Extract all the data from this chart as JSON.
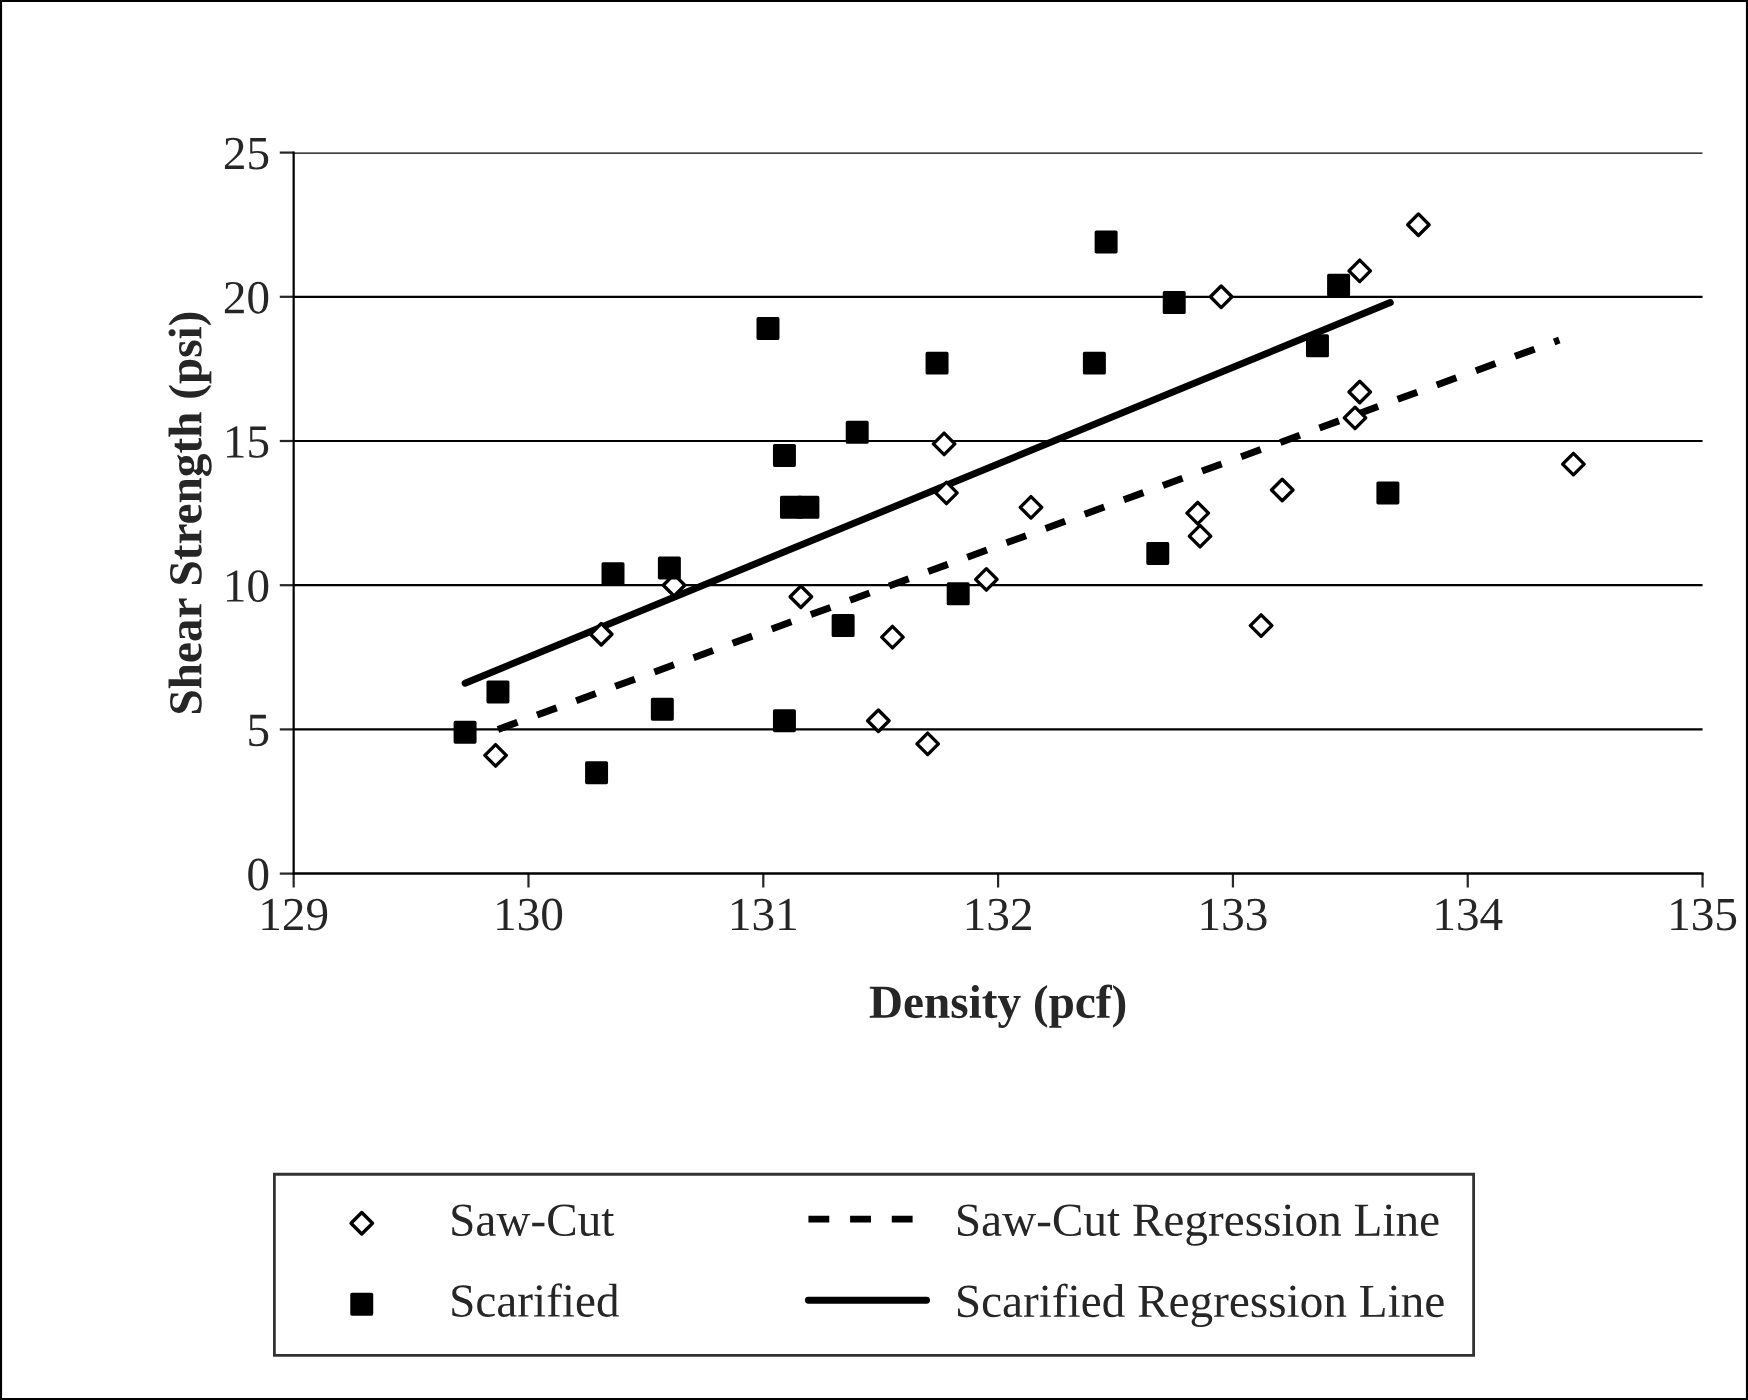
{
  "chart_data": {
    "type": "scatter",
    "xlabel": "Density (pcf)",
    "ylabel": "Shear Strength (psi)",
    "xlim": [
      129,
      135
    ],
    "xticks": [
      129,
      130,
      131,
      132,
      133,
      134,
      135
    ],
    "ylim": [
      0,
      25
    ],
    "yticks": [
      0,
      5,
      10,
      15,
      20,
      25
    ],
    "grid": "y",
    "legend": "bottom",
    "series": [
      {
        "name": "Saw-Cut",
        "marker": "diamond",
        "color": "#000000",
        "x": [
          129.86,
          130.31,
          130.62,
          131.16,
          131.55,
          131.49,
          131.7,
          131.77,
          131.78,
          131.95,
          132.14,
          132.85,
          132.86,
          133.21,
          133.12,
          132.95,
          133.54,
          133.79,
          133.54,
          133.52,
          134.45
        ],
        "values": [
          4.1,
          8.3,
          10.0,
          9.6,
          8.2,
          5.3,
          4.5,
          14.9,
          13.2,
          10.2,
          12.7,
          12.5,
          11.7,
          13.3,
          8.6,
          20.0,
          20.9,
          22.5,
          16.7,
          15.8,
          14.2
        ]
      },
      {
        "name": "Scarified",
        "marker": "square",
        "color": "#000000",
        "x": [
          129.73,
          129.87,
          130.29,
          130.36,
          130.6,
          130.57,
          131.02,
          131.09,
          131.12,
          131.19,
          131.09,
          131.4,
          131.34,
          131.74,
          131.83,
          132.46,
          132.75,
          132.41,
          132.68,
          133.45,
          133.36,
          133.66
        ],
        "values": [
          4.9,
          6.3,
          3.5,
          10.4,
          10.6,
          5.7,
          18.9,
          14.5,
          12.7,
          12.7,
          5.3,
          15.3,
          8.6,
          17.7,
          9.7,
          21.9,
          19.8,
          17.7,
          11.1,
          20.4,
          18.3,
          13.2
        ]
      },
      {
        "name": "Saw-Cut Regression Line",
        "type": "line",
        "line_style": "dashed",
        "color": "#000000",
        "x": [
          129.87,
          134.39
        ],
        "values": [
          5.0,
          18.5
        ]
      },
      {
        "name": "Scarified Regression Line",
        "type": "line",
        "line_style": "solid",
        "color": "#000000",
        "x": [
          129.73,
          133.67
        ],
        "values": [
          6.6,
          19.8
        ]
      }
    ]
  }
}
